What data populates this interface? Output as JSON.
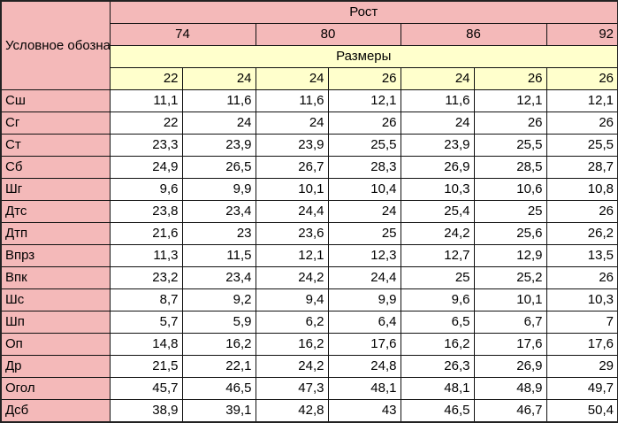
{
  "header": {
    "label_column": "Условное обозначение",
    "height_title": "Рост",
    "heights": [
      {
        "value": "74",
        "span": 2
      },
      {
        "value": "80",
        "span": 2
      },
      {
        "value": "86",
        "span": 2
      },
      {
        "value": "92",
        "span": 1
      }
    ],
    "sizes_title": "Размеры",
    "sizes": [
      "22",
      "24",
      "24",
      "26",
      "24",
      "26",
      "26"
    ]
  },
  "colors": {
    "header_pink": "#f4b9b9",
    "sizes_yellow": "#ffffcc"
  },
  "rows": [
    {
      "label": "Сш",
      "values": [
        "11,1",
        "11,6",
        "11,6",
        "12,1",
        "11,6",
        "12,1",
        "12,1"
      ]
    },
    {
      "label": "Сг",
      "values": [
        "22",
        "24",
        "24",
        "26",
        "24",
        "26",
        "26"
      ]
    },
    {
      "label": "Ст",
      "values": [
        "23,3",
        "23,9",
        "23,9",
        "25,5",
        "23,9",
        "25,5",
        "25,5"
      ]
    },
    {
      "label": "Сб",
      "values": [
        "24,9",
        "26,5",
        "26,7",
        "28,3",
        "26,9",
        "28,5",
        "28,7"
      ]
    },
    {
      "label": "Шг",
      "values": [
        "9,6",
        "9,9",
        "10,1",
        "10,4",
        "10,3",
        "10,6",
        "10,8"
      ]
    },
    {
      "label": "Дтс",
      "values": [
        "23,8",
        "23,4",
        "24,4",
        "24",
        "25,4",
        "25",
        "26"
      ]
    },
    {
      "label": "Дтп",
      "values": [
        "21,6",
        "23",
        "23,6",
        "25",
        "24,2",
        "25,6",
        "26,2"
      ]
    },
    {
      "label": "Впрз",
      "values": [
        "11,3",
        "11,5",
        "12,1",
        "12,3",
        "12,7",
        "12,9",
        "13,5"
      ]
    },
    {
      "label": "Впк",
      "values": [
        "23,2",
        "23,4",
        "24,2",
        "24,4",
        "25",
        "25,2",
        "26"
      ]
    },
    {
      "label": "Шс",
      "values": [
        "8,7",
        "9,2",
        "9,4",
        "9,9",
        "9,6",
        "10,1",
        "10,3"
      ]
    },
    {
      "label": "Шп",
      "values": [
        "5,7",
        "5,9",
        "6,2",
        "6,4",
        "6,5",
        "6,7",
        "7"
      ]
    },
    {
      "label": "Оп",
      "values": [
        "14,8",
        "16,2",
        "16,2",
        "17,6",
        "16,2",
        "17,6",
        "17,6"
      ]
    },
    {
      "label": "Др",
      "values": [
        "21,5",
        "22,1",
        "24,2",
        "24,8",
        "26,3",
        "26,9",
        "29"
      ]
    },
    {
      "label": "Огол",
      "values": [
        "45,7",
        "46,5",
        "47,3",
        "48,1",
        "48,1",
        "48,9",
        "49,7"
      ]
    },
    {
      "label": "Дсб",
      "values": [
        "38,9",
        "39,1",
        "42,8",
        "43",
        "46,5",
        "46,7",
        "50,4"
      ]
    }
  ]
}
